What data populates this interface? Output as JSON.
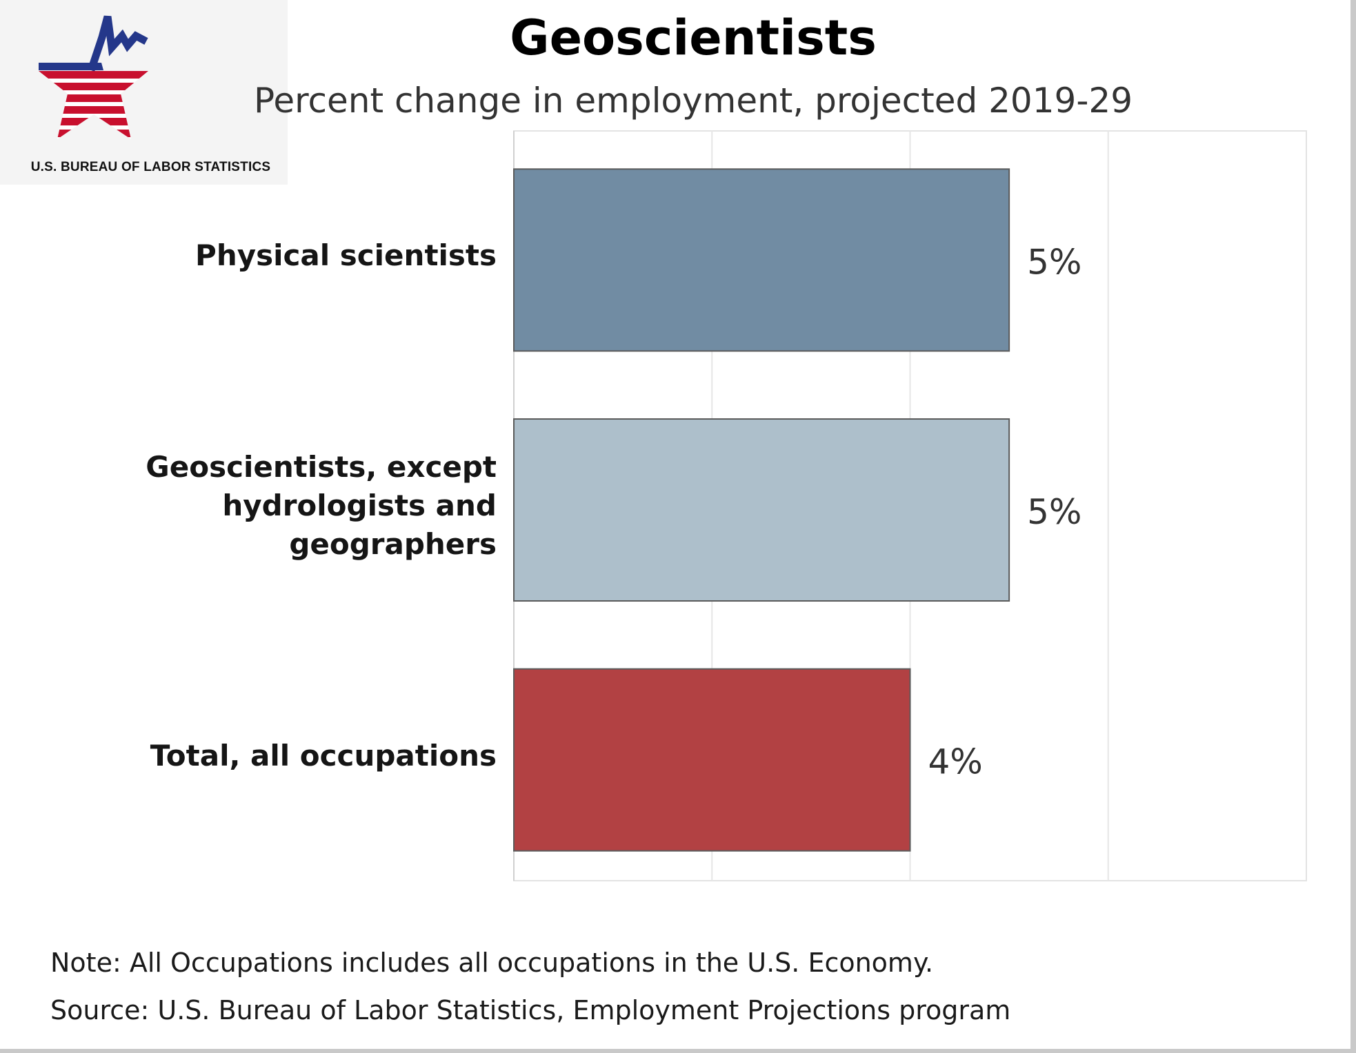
{
  "logo": {
    "text": "U.S. BUREAU OF LABOR STATISTICS",
    "icon": "bls-star-chart-logo",
    "colors": {
      "blue": "#24378a",
      "red": "#c8102e"
    }
  },
  "chart_data": {
    "type": "bar",
    "orientation": "horizontal",
    "title": "Geoscientists",
    "subtitle": "Percent change in employment, projected 2019-29",
    "categories": [
      "Physical scientists",
      "Geoscientists, except hydrologists and geographers",
      "Total, all occupations"
    ],
    "category_lines": [
      [
        "Physical scientists"
      ],
      [
        "Geoscientists, except",
        "hydrologists and",
        "geographers"
      ],
      [
        "Total, all occupations"
      ]
    ],
    "values": [
      5,
      5,
      4
    ],
    "data_labels": [
      "5%",
      "5%",
      "4%"
    ],
    "colors": [
      "#718ca3",
      "#adbfcb",
      "#b24143"
    ],
    "xlim": [
      0,
      8
    ],
    "grid": true,
    "xlabel": "",
    "ylabel": ""
  },
  "footer": {
    "note": "Note: All Occupations includes all occupations in the U.S. Economy.",
    "source": "Source: U.S. Bureau of Labor Statistics, Employment Projections program"
  }
}
